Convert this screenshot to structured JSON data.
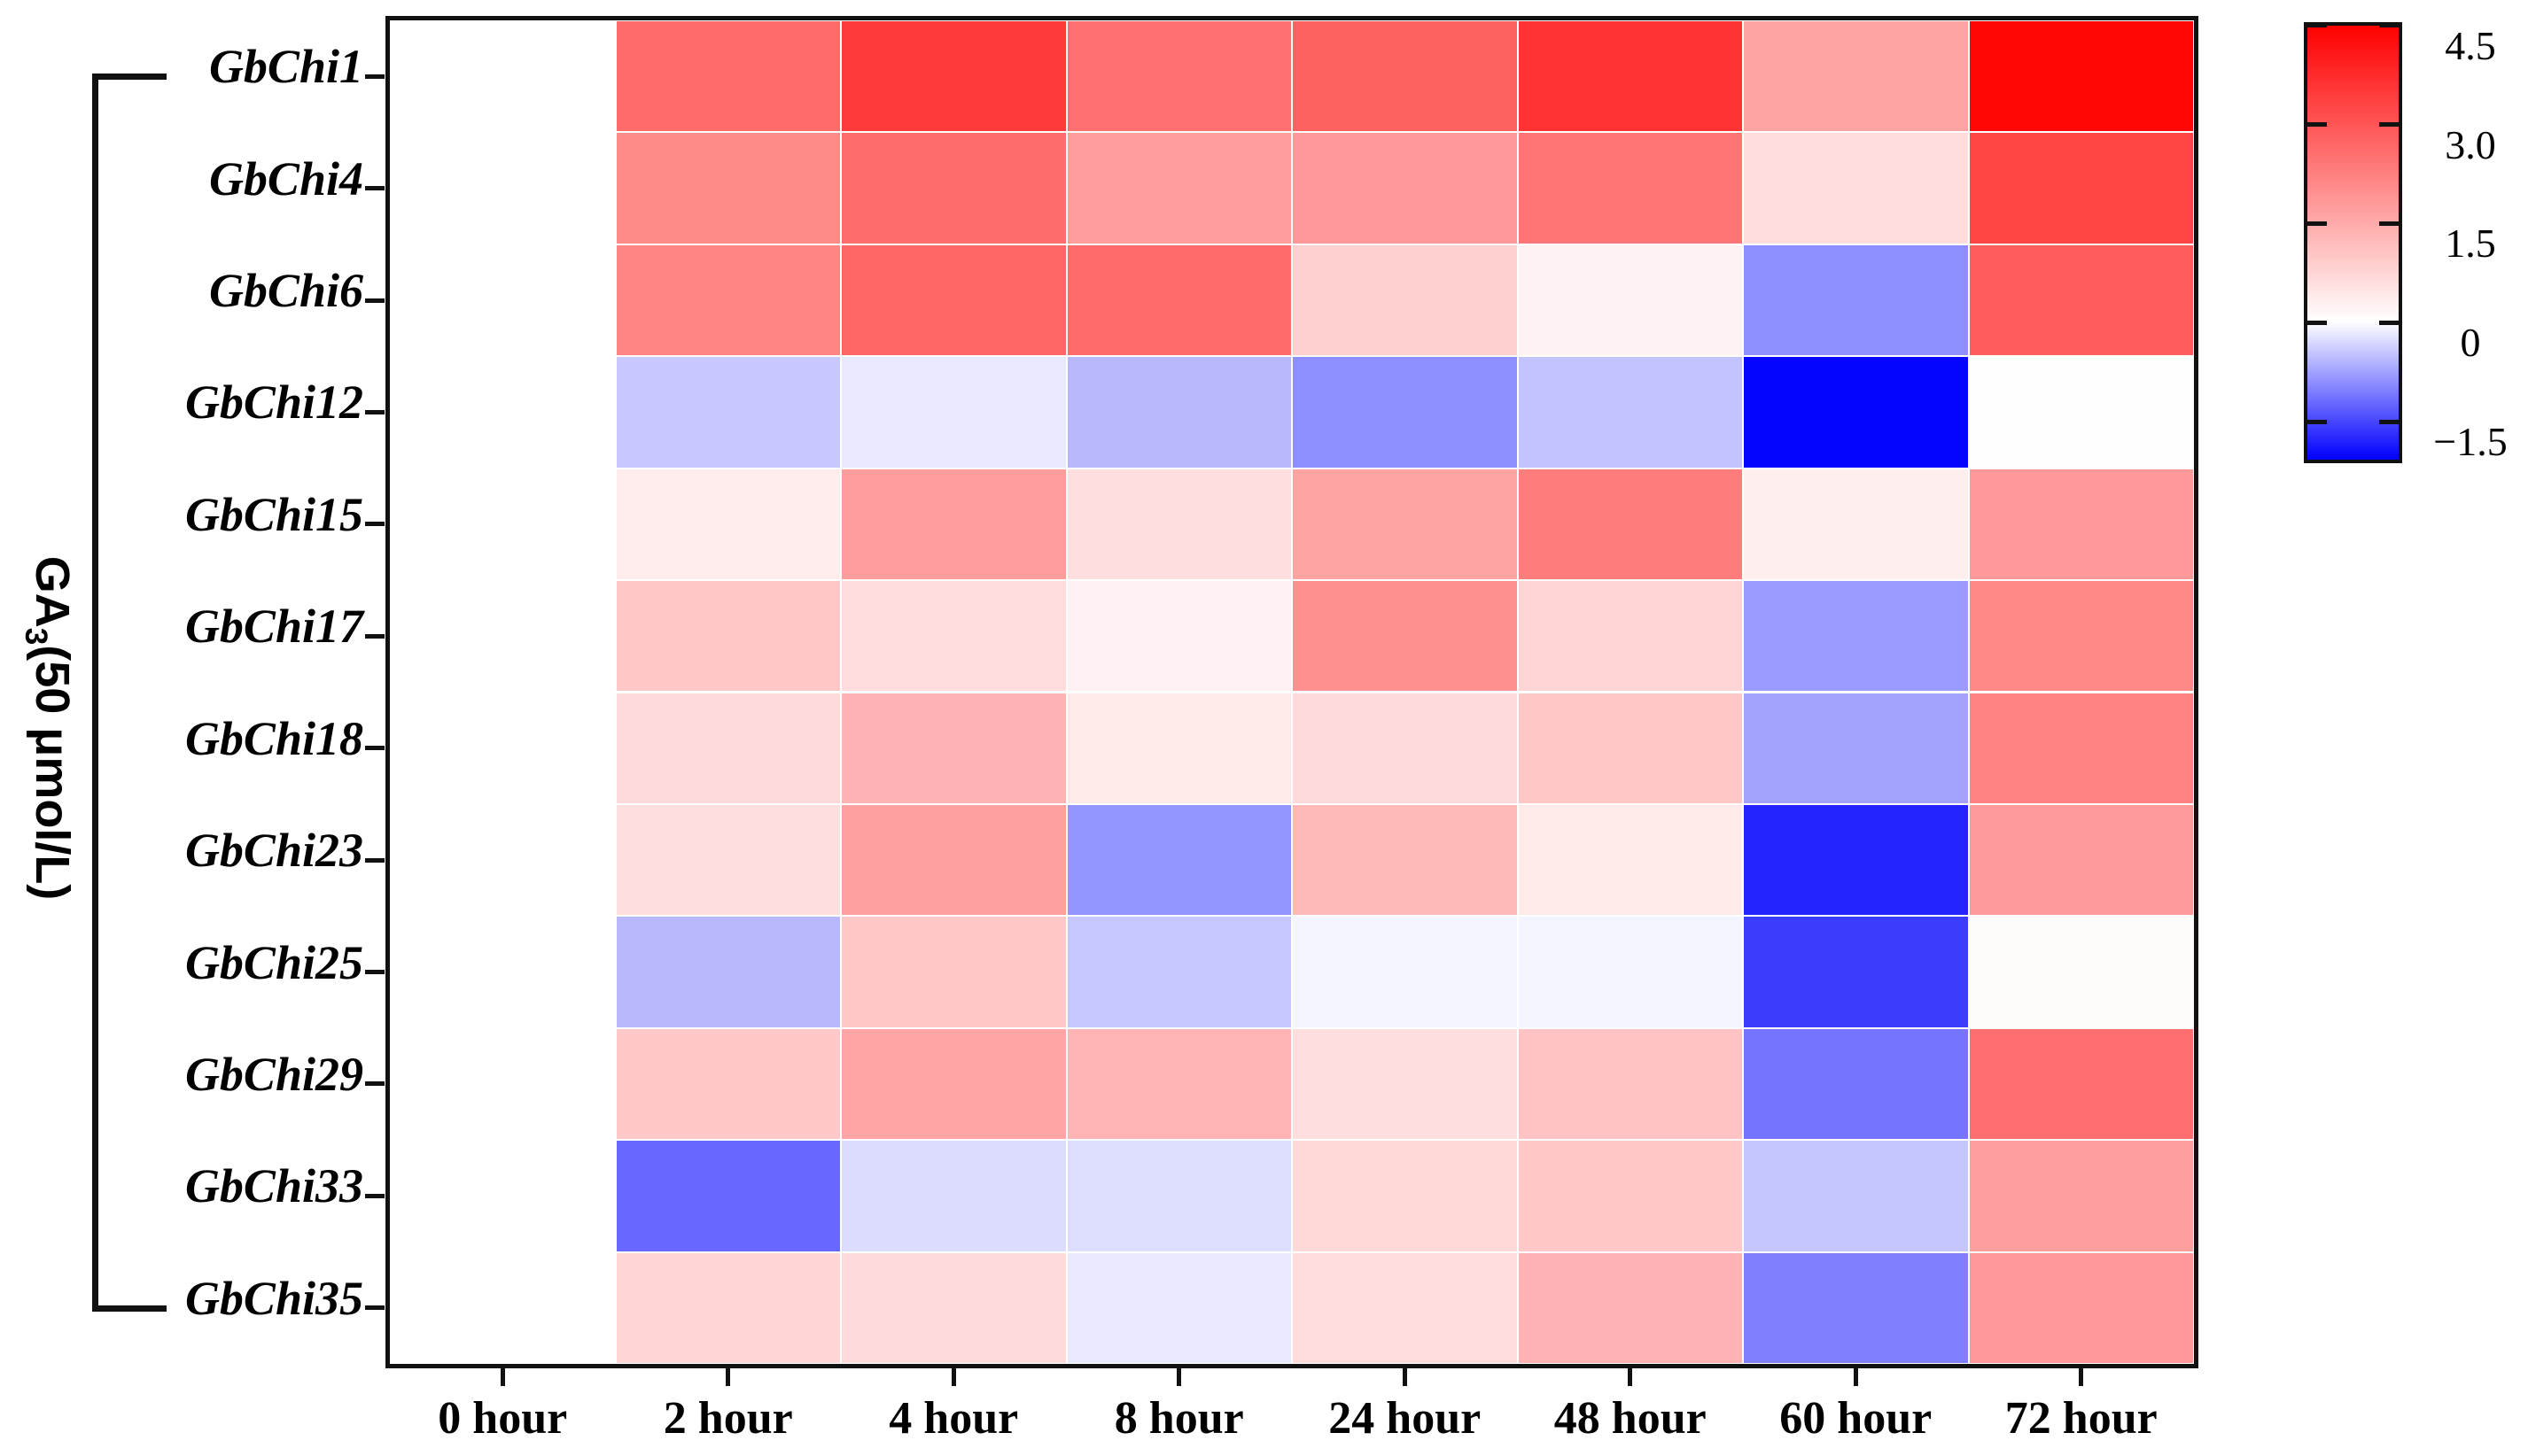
{
  "figure": {
    "y_axis_label": {
      "prefix": "GA",
      "subscript": "3",
      "suffix": "(50 μmol/L)"
    }
  },
  "chart_data": {
    "type": "heatmap",
    "title": "",
    "xlabel": "",
    "ylabel": "GA3(50 μmol/L)",
    "rows": [
      "GbChi1",
      "GbChi4",
      "GbChi6",
      "GbChi12",
      "GbChi15",
      "GbChi17",
      "GbChi18",
      "GbChi23",
      "GbChi25",
      "GbChi29",
      "GbChi33",
      "GbChi35"
    ],
    "columns": [
      "0 hour",
      "2 hour",
      "4 hour",
      "8 hour",
      "24 hour",
      "48 hour",
      "60 hour",
      "72 hour"
    ],
    "values": [
      [
        0,
        2.66,
        3.52,
        2.55,
        2.84,
        3.64,
        1.64,
        4.44
      ],
      [
        0,
        2.09,
        2.62,
        1.75,
        1.82,
        2.46,
        0.61,
        3.32
      ],
      [
        0,
        2.18,
        2.73,
        2.66,
        0.84,
        0.23,
        -0.94,
        2.91
      ],
      [
        0,
        -0.46,
        -0.19,
        -0.59,
        -0.94,
        -0.5,
        -2.09,
        0.02
      ],
      [
        0,
        0.32,
        1.75,
        0.59,
        1.64,
        2.34,
        0.3,
        1.84
      ],
      [
        0,
        0.96,
        0.62,
        0.25,
        1.98,
        0.77,
        -0.84,
        2.12
      ],
      [
        0,
        0.66,
        1.36,
        0.37,
        0.66,
        1.02,
        -0.77,
        2.21
      ],
      [
        0,
        0.59,
        1.7,
        -0.89,
        1.27,
        0.37,
        -1.83,
        1.8
      ],
      [
        0,
        -0.59,
        0.96,
        -0.47,
        -0.09,
        -0.09,
        -1.63,
        0.07
      ],
      [
        0,
        0.96,
        1.61,
        1.32,
        0.59,
        1.07,
        -1.16,
        2.57
      ],
      [
        0,
        -1.26,
        -0.29,
        -0.28,
        0.7,
        0.96,
        -0.48,
        1.73
      ],
      [
        0,
        0.73,
        0.66,
        -0.18,
        0.62,
        1.36,
        -1.06,
        1.84
      ]
    ],
    "colormap": {
      "type": "blue-white-red",
      "positive_color": "#ff0000",
      "zero_color": "#ffffff",
      "negative_color": "#0000ff",
      "vmax": 4.55,
      "vmin": -2.13
    },
    "colorbar": {
      "position": "top-right",
      "ticks": [
        4.5,
        3.0,
        1.5,
        0,
        -1.5
      ],
      "tick_labels": [
        "4.5",
        "3.0",
        "1.5",
        "0",
        "−1.5"
      ]
    },
    "grid": true,
    "legend_position": "right"
  }
}
